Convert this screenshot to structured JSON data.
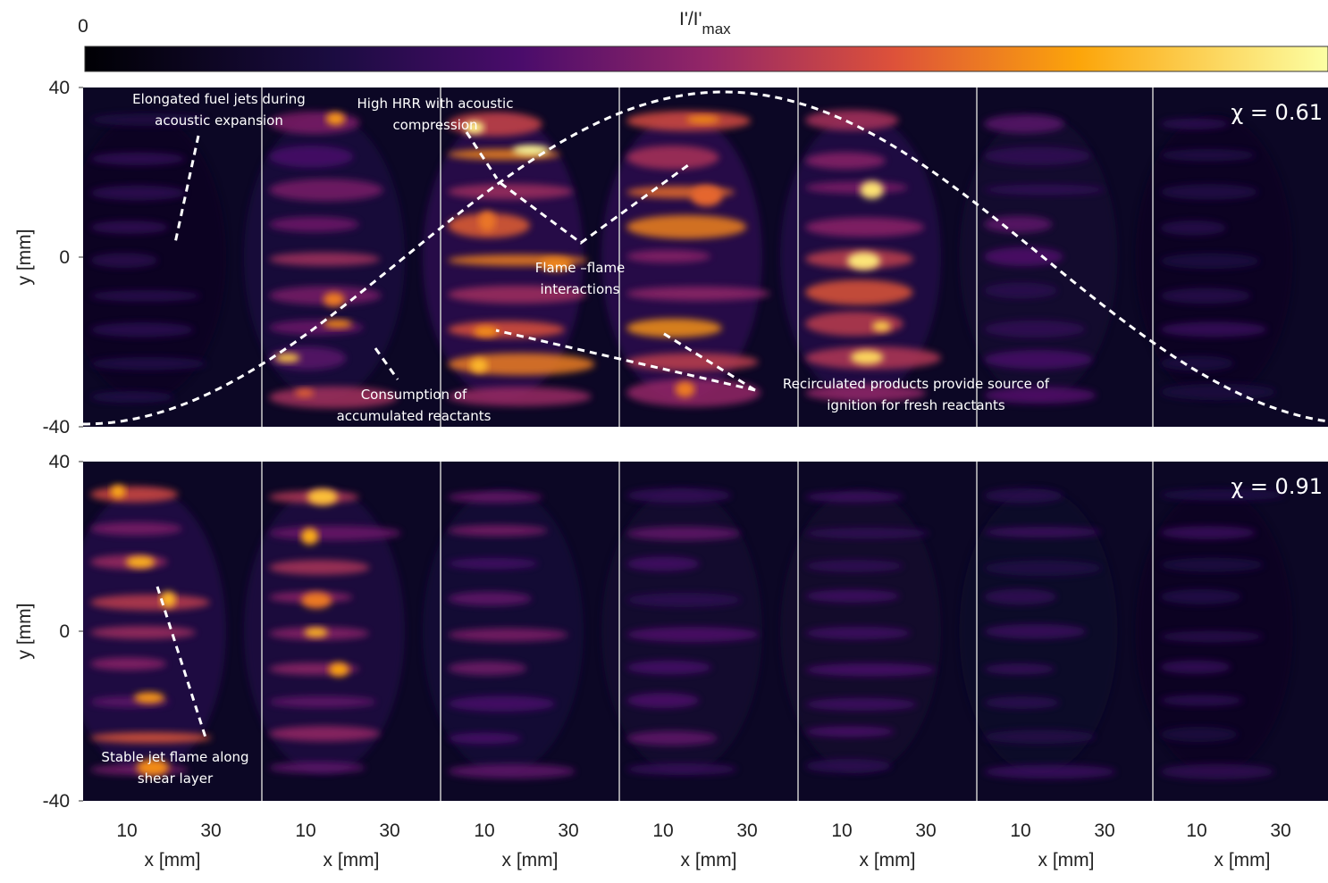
{
  "colorbar": {
    "min_label": "0",
    "title": "I'/I'",
    "title_sub": "max"
  },
  "x_ticks": [
    "10",
    "30"
  ],
  "x_label": "x [mm]",
  "rows": [
    {
      "y_label": "y [mm]",
      "y_ticks": [
        "40",
        "0",
        "-40"
      ],
      "chi_label": "χ = 0.61",
      "annotations": [
        {
          "lines": [
            "Elongated fuel jets during",
            "acoustic expansion"
          ]
        },
        {
          "lines": [
            "High HRR with acoustic",
            "compression"
          ]
        },
        {
          "lines": [
            "Flame –flame",
            "interactions"
          ]
        },
        {
          "lines": [
            "Consumption of",
            "accumulated reactants"
          ]
        },
        {
          "lines": [
            "Recirculated products provide source of",
            "ignition for fresh reactants"
          ]
        }
      ]
    },
    {
      "y_label": "y [mm]",
      "y_ticks": [
        "40",
        "0",
        "-40"
      ],
      "chi_label": "χ = 0.91",
      "annotations": [
        {
          "lines": [
            "Stable  jet flame along",
            "shear layer"
          ]
        }
      ]
    }
  ]
}
